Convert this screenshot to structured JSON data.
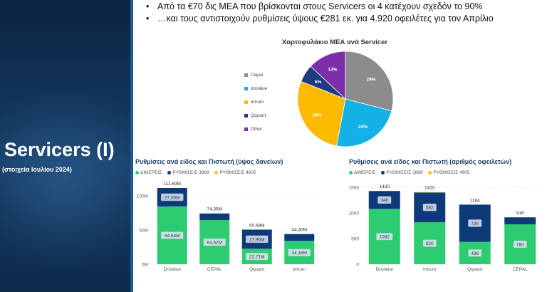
{
  "sidebar": {
    "title": "Servicers (I)",
    "subtitle": "(στοιχεία Ιουλίου 2024)"
  },
  "bullets": [
    "Από τα €70 δις ΜΕΑ που βρίσκονται στους Servicers οι 4 κατέχουν σχεδόν το 90%",
    "…και τους αντιστοιχούν ρυθμίσεις ύψους €281 εκ. για 4.920 οφειλέτες για τον Απρίλιο"
  ],
  "bullet_glyph": "•",
  "colors": {
    "green": "#2ecc71",
    "navy": "#0d3b7a",
    "yellow": "#f4c430",
    "pie": [
      "#8c8c8c",
      "#15b1e6",
      "#fbb900",
      "#1f3b80",
      "#7b2fa8"
    ]
  },
  "chart_data": [
    {
      "type": "pie",
      "title": "Χαρτοφυλάκιο ΜΕΑ ανά Servicer",
      "labels": [
        "Cepal",
        "doValue",
        "Intrum",
        "Qquant",
        "Other"
      ],
      "values": [
        29,
        24,
        28,
        6,
        13
      ],
      "data_labels": [
        "29%",
        "24%",
        "28%",
        "6%",
        "13%"
      ],
      "legend": "left"
    },
    {
      "type": "bar",
      "title": "Ρυθμίσεις ανά είδος και Πιστωτή (ύψος δανείων)",
      "legend_labels": [
        "ΔΙΜΕΡΕΙΣ",
        "ΡΥΘΜΙΣΕΙΣ 3869",
        "ΡΥΘΜΙΣΕΙΣ 4605"
      ],
      "categories": [
        "DoValue",
        "CEPAL",
        "Qquant",
        "Intrum"
      ],
      "series": [
        {
          "name": "ΔΙΜΕΡΕΙΣ",
          "values": [
            84.64,
            64.62,
            22.71,
            34.16
          ],
          "labels": [
            "84,64M",
            "64,62M",
            "22,71M",
            "34,16M"
          ]
        },
        {
          "name": "ΡΥΘΜΙΣΕΙΣ 3869",
          "values": [
            27.05,
            9.73,
            27.96,
            10.14
          ],
          "labels": [
            "27,05M",
            "",
            "27,96M",
            ""
          ]
        },
        {
          "name": "ΡΥΘΜΙΣΕΙΣ 4605",
          "values": [
            0,
            0,
            0,
            0
          ],
          "labels": [
            "",
            "",
            "",
            ""
          ]
        }
      ],
      "totals": [
        "111,69M",
        "74,35M",
        "50,68M",
        "44,30M"
      ],
      "yticks": [
        "100M",
        "50M",
        "0M"
      ],
      "ytick_values": [
        100,
        50,
        0
      ],
      "ylim": [
        0,
        120
      ]
    },
    {
      "type": "bar",
      "title": "Ρυθμίσεις ανά είδος και Πιστωτή (αριθμός οφειλετών)",
      "legend_labels": [
        "ΔΙΜΕΡΕΙΣ",
        "ΡΥΘΜΙΣΕΙΣ 3869",
        "ΡΥΘΜΙΣΕΙΣ 4605"
      ],
      "categories": [
        "DoValue",
        "Intrum",
        "Qquant",
        "CEPAL"
      ],
      "series": [
        {
          "name": "ΔΙΜΕΡΕΙΣ",
          "values": [
            1082,
            820,
            438,
            780
          ],
          "labels": [
            "1082",
            "820",
            "438",
            "780"
          ]
        },
        {
          "name": "ΡΥΘΜΙΣΕΙΣ 3869",
          "values": [
            348,
            582,
            726,
            136
          ],
          "labels": [
            "348",
            "582",
            "726",
            ""
          ]
        },
        {
          "name": "ΡΥΘΜΙΣΕΙΣ 4605",
          "values": [
            0,
            8,
            0,
            0
          ],
          "labels": [
            "",
            "",
            "",
            ""
          ]
        }
      ],
      "totals": [
        "1430",
        "1410",
        "1164",
        "916"
      ],
      "yticks": [
        "1500",
        "1000",
        "500",
        "0"
      ],
      "ytick_values": [
        1500,
        1000,
        500,
        0
      ],
      "ylim": [
        0,
        1600
      ]
    }
  ]
}
